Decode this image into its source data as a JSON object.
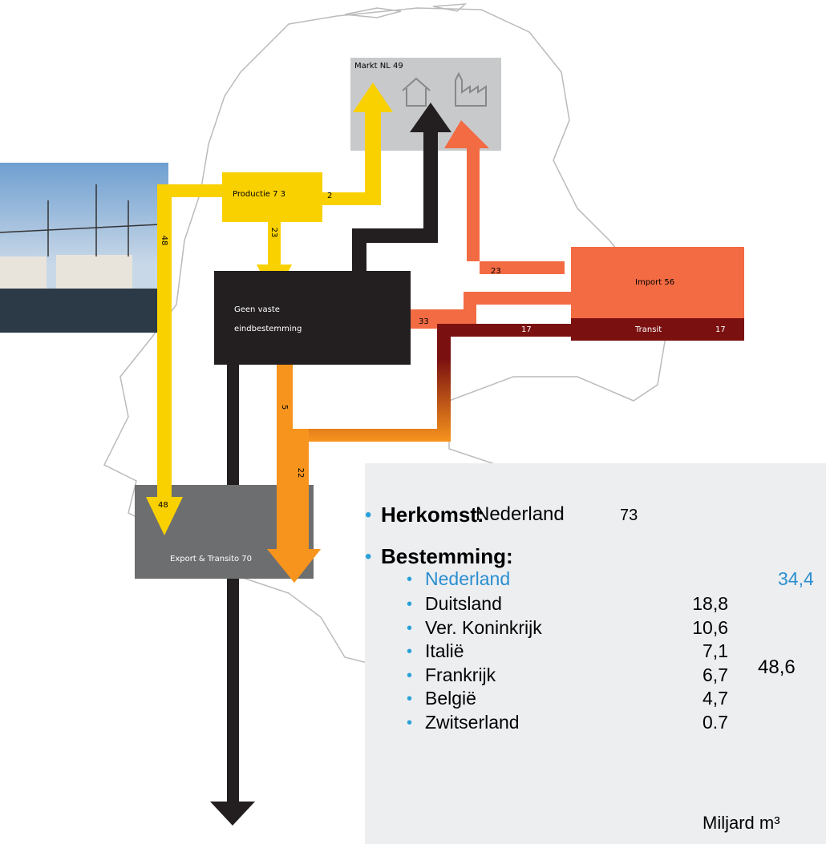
{
  "diagram": {
    "nodes": {
      "markt": "Markt NL 49",
      "productie": "Productie 7 3",
      "geen_vaste": [
        "Geen vaste",
        "eindbestemming"
      ],
      "import": "Import 56",
      "transit": {
        "label": "Transit",
        "value": "17"
      },
      "export": "Export & Transito 70"
    },
    "flows": {
      "productie_markt": "2",
      "productie_export": "48",
      "productie_geen": "23",
      "import_markt": "23",
      "import_geen": "33",
      "transit_export": "17",
      "geen_export": "5",
      "orange_export": "22",
      "export_in": "48"
    }
  },
  "panel": {
    "herkomst": {
      "label": "Herkomst:",
      "country": "Nederland",
      "value": "73"
    },
    "bestemming": {
      "label": "Bestemming:",
      "home": {
        "country": "Nederland",
        "value": "34,4"
      },
      "rows": [
        [
          "Duitsland",
          "18,8"
        ],
        [
          "Ver. Koninkrijk",
          "10,6"
        ],
        [
          "Italië",
          "7,1"
        ],
        [
          "Frankrijk",
          "6,7"
        ],
        [
          "België",
          "4,7"
        ],
        [
          "Zwitserland",
          "0.7"
        ]
      ],
      "total": "48,6"
    },
    "unit": "Miljard m³"
  }
}
